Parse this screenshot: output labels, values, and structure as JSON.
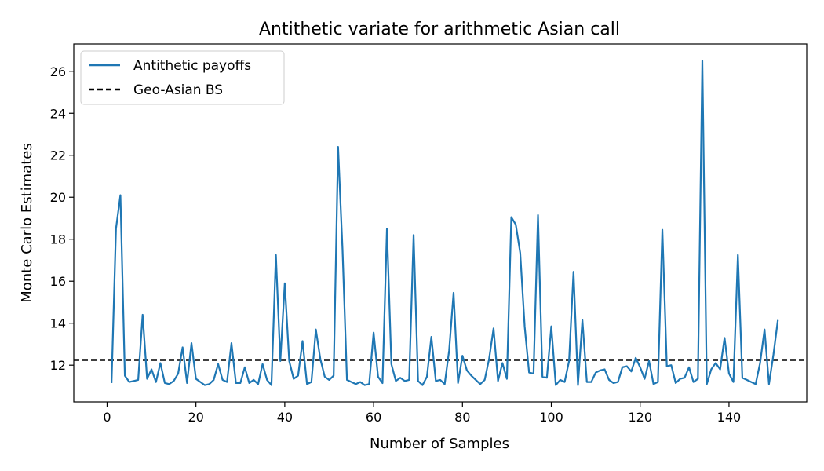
{
  "chart_data": {
    "type": "line",
    "title": "Antithetic variate for arithmetic Asian call",
    "xlabel": "Number of Samples",
    "ylabel": "Monte Carlo Estimates",
    "xlim": [
      -7.5,
      157.5
    ],
    "ylim": [
      10.25,
      27.3
    ],
    "xticks": [
      0,
      20,
      40,
      60,
      80,
      100,
      120,
      140
    ],
    "yticks": [
      12,
      14,
      16,
      18,
      20,
      22,
      24,
      26
    ],
    "grid": false,
    "legend_position": "top-left",
    "series": [
      {
        "name": "Antithetic payoffs",
        "color": "#1f77b4",
        "style": "solid",
        "x_start": 1,
        "x_step": 1,
        "values": [
          11.15,
          18.5,
          20.1,
          11.5,
          11.2,
          11.25,
          11.3,
          14.4,
          11.35,
          11.8,
          11.2,
          12.1,
          11.15,
          11.1,
          11.25,
          11.6,
          12.85,
          11.15,
          13.05,
          11.35,
          11.2,
          11.05,
          11.1,
          11.3,
          12.05,
          11.3,
          11.2,
          13.05,
          11.15,
          11.15,
          11.9,
          11.15,
          11.3,
          11.1,
          12.05,
          11.3,
          11.05,
          17.25,
          12.2,
          15.9,
          12.2,
          11.35,
          11.5,
          13.15,
          11.1,
          11.2,
          13.7,
          12.3,
          11.45,
          11.3,
          11.5,
          22.4,
          17.5,
          11.3,
          11.2,
          11.1,
          11.2,
          11.05,
          11.1,
          13.55,
          11.45,
          11.15,
          18.5,
          12.05,
          11.25,
          11.4,
          11.25,
          11.3,
          18.2,
          11.25,
          11.05,
          11.45,
          13.35,
          11.25,
          11.3,
          11.1,
          12.7,
          15.45,
          11.15,
          12.45,
          11.75,
          11.5,
          11.3,
          11.1,
          11.3,
          12.3,
          13.75,
          11.25,
          12.1,
          11.35,
          19.05,
          18.7,
          17.35,
          13.85,
          11.65,
          11.6,
          19.15,
          11.45,
          11.4,
          13.85,
          11.05,
          11.3,
          11.2,
          12.2,
          16.45,
          11.05,
          14.15,
          11.2,
          11.2,
          11.65,
          11.75,
          11.8,
          11.3,
          11.15,
          11.2,
          11.9,
          11.95,
          11.7,
          12.35,
          11.9,
          11.35,
          12.2,
          11.1,
          11.2,
          18.45,
          11.95,
          12.0,
          11.15,
          11.35,
          11.4,
          11.9,
          11.2,
          11.35,
          26.5,
          11.1,
          11.8,
          12.1,
          11.8,
          13.3,
          11.6,
          11.2,
          17.25,
          11.4,
          11.3,
          11.2,
          11.1,
          12.1,
          13.7,
          11.1,
          12.5,
          14.15
        ]
      },
      {
        "name": "Geo-Asian BS",
        "color": "#000000",
        "style": "dashed",
        "constant": 12.25
      }
    ]
  }
}
